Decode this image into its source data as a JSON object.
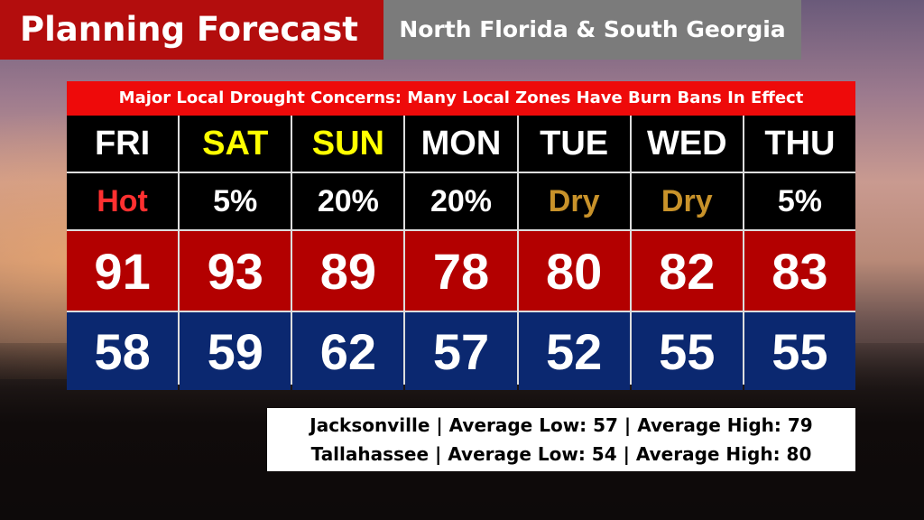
{
  "header": {
    "title": "Planning Forecast",
    "subtitle": "North Florida & South Georgia"
  },
  "banner": "Major Local Drought Concerns: Many Local Zones Have Burn Bans In Effect",
  "days": [
    {
      "day": "FRI",
      "day_color": "#ffffff",
      "condition": "Hot",
      "condition_color": "#ff3030",
      "high": 91,
      "low": 58
    },
    {
      "day": "SAT",
      "day_color": "#ffff00",
      "condition": "5%",
      "condition_color": "#ffffff",
      "high": 93,
      "low": 59
    },
    {
      "day": "SUN",
      "day_color": "#ffff00",
      "condition": "20%",
      "condition_color": "#ffffff",
      "high": 89,
      "low": 62
    },
    {
      "day": "MON",
      "day_color": "#ffffff",
      "condition": "20%",
      "condition_color": "#ffffff",
      "high": 78,
      "low": 57
    },
    {
      "day": "TUE",
      "day_color": "#ffffff",
      "condition": "Dry",
      "condition_color": "#c8922a",
      "high": 80,
      "low": 52
    },
    {
      "day": "WED",
      "day_color": "#ffffff",
      "condition": "Dry",
      "condition_color": "#c8922a",
      "high": 82,
      "low": 55
    },
    {
      "day": "THU",
      "day_color": "#ffffff",
      "condition": "5%",
      "condition_color": "#ffffff",
      "high": 83,
      "low": 55
    }
  ],
  "averages": [
    "Jacksonville | Average Low: 57 | Average High: 79",
    "Tallahassee | Average Low: 54 | Average High: 80"
  ]
}
